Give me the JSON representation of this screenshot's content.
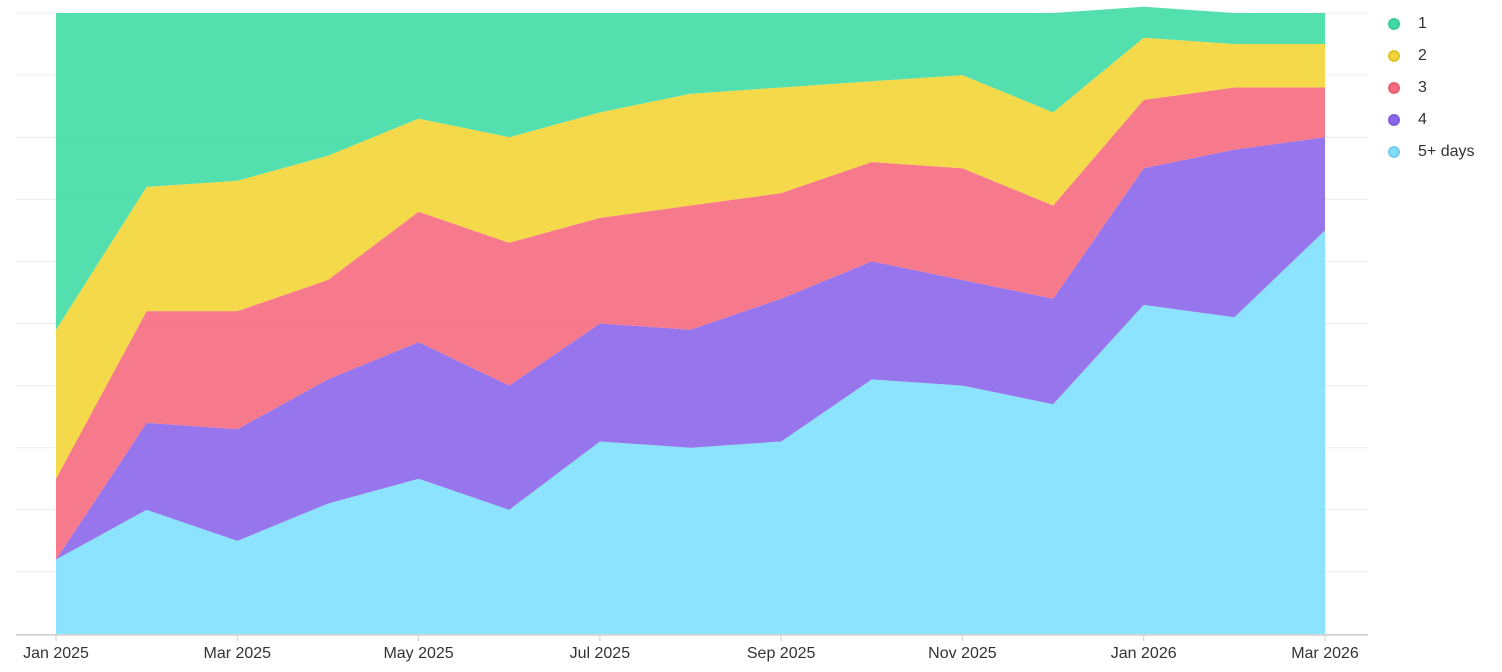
{
  "chart_data": {
    "type": "area",
    "stacked": true,
    "normalized": true,
    "x": [
      "Jan 2025",
      "Feb 2025",
      "Mar 2025",
      "Apr 2025",
      "May 2025",
      "Jun 2025",
      "Jul 2025",
      "Aug 2025",
      "Sep 2025",
      "Oct 2025",
      "Nov 2025",
      "Dec 2025",
      "Jan 2026",
      "Feb 2026",
      "Mar 2026"
    ],
    "x_tick_labels": [
      "Jan 2025",
      "Mar 2025",
      "May 2025",
      "Jul 2025",
      "Sep 2025",
      "Nov 2025",
      "Jan 2026",
      "Mar 2026"
    ],
    "ylim": [
      0,
      100
    ],
    "grid": true,
    "legend_position": "top-right",
    "series": [
      {
        "name": "5+ days",
        "color": "#7fe0fd",
        "values": [
          12,
          20,
          15,
          21,
          25,
          20,
          31,
          30,
          31,
          41,
          40,
          37,
          53,
          51,
          65
        ]
      },
      {
        "name": "4",
        "color": "#8c66eb",
        "values": [
          0,
          14,
          18,
          20,
          22,
          20,
          19,
          19,
          23,
          19,
          17,
          17,
          22,
          27,
          15
        ]
      },
      {
        "name": "3",
        "color": "#f66b80",
        "values": [
          13,
          18,
          19,
          16,
          21,
          23,
          17,
          20,
          17,
          16,
          18,
          15,
          11,
          10,
          8
        ]
      },
      {
        "name": "2",
        "color": "#f3d536",
        "values": [
          24,
          20,
          21,
          20,
          15,
          17,
          17,
          18,
          17,
          13,
          15,
          15,
          10,
          7,
          7
        ]
      },
      {
        "name": "1",
        "color": "#40dba5",
        "values": [
          51,
          28,
          27,
          23,
          17,
          20,
          16,
          13,
          12,
          11,
          10,
          16,
          5,
          5,
          5
        ]
      }
    ],
    "legend": [
      "1",
      "2",
      "3",
      "4",
      "5+ days"
    ]
  }
}
